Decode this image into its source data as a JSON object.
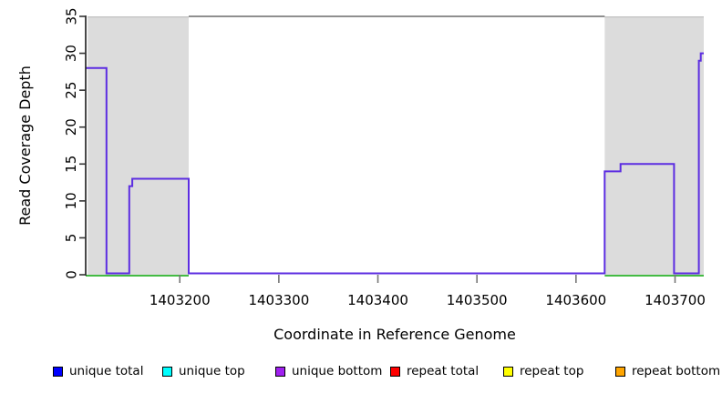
{
  "chart_data": {
    "type": "line",
    "subtype": "step-coverage",
    "title": "",
    "xlabel": "Coordinate in Reference Genome",
    "ylabel": "Read Coverage Depth",
    "xlim": [
      1403105,
      1403729
    ],
    "ylim": [
      0,
      35
    ],
    "x_ticks": [
      1403200,
      1403300,
      1403400,
      1403500,
      1403600,
      1403700
    ],
    "y_ticks": [
      0,
      5,
      10,
      15,
      20,
      25,
      30,
      35
    ],
    "grid": false,
    "region_fill": "#dcdcdc",
    "region_edge": "#bfbfbf",
    "shaded_regions": [
      {
        "name": "repeat-region-left",
        "x0": 1403107,
        "x1": 1403209
      },
      {
        "name": "repeat-region-right",
        "x0": 1403629,
        "x1": 1403729
      }
    ],
    "series": [
      {
        "name": "max-depth-line",
        "type": "hline_segments",
        "color": "#8f8f8f",
        "width": 2,
        "value": 35,
        "segments": [
          [
            1403209,
            1403629
          ]
        ]
      },
      {
        "name": "zero-baseline-green",
        "type": "hline_segments",
        "color": "#44bb44",
        "width": 2,
        "value": 0,
        "segments": [
          [
            1403105,
            1403209
          ],
          [
            1403629,
            1403729
          ]
        ]
      },
      {
        "name": "unique-bottom-coverage",
        "type": "step",
        "color": "#5c2de1",
        "width": 2,
        "points": [
          [
            1403105,
            28
          ],
          [
            1403126,
            0
          ],
          [
            1403149,
            12
          ],
          [
            1403152,
            13
          ],
          [
            1403209,
            0
          ],
          [
            1403629,
            14
          ],
          [
            1403645,
            15
          ],
          [
            1403699,
            0
          ],
          [
            1403724,
            29
          ],
          [
            1403726,
            30
          ],
          [
            1403729,
            30
          ]
        ]
      }
    ],
    "legend": [
      {
        "label": "unique total",
        "color": "#0000ff"
      },
      {
        "label": "unique top",
        "color": "#00ffff"
      },
      {
        "label": "unique bottom",
        "color": "#a020f0"
      },
      {
        "label": "repeat total",
        "color": "#ff0000"
      },
      {
        "label": "repeat top",
        "color": "#ffff00"
      },
      {
        "label": "repeat bottom",
        "color": "#ffa500"
      }
    ],
    "legend_position": "bottom"
  }
}
